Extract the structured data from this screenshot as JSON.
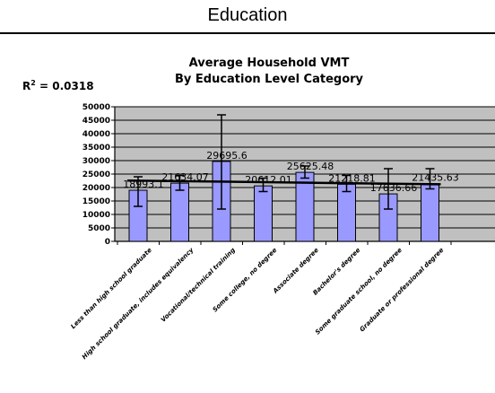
{
  "page": {
    "title": "Education"
  },
  "chart_data": {
    "type": "bar",
    "title": "Average Household VMT",
    "subtitle": "By Education Level Category",
    "r_squared": {
      "label": "R",
      "superscript": "2",
      "value_text": " = 0.0318"
    },
    "categories": [
      "Less than high school graduate",
      "High school graduate, includes equivalency",
      "Vocational/technical training",
      "Some college, no degree",
      "Associate degree",
      "Bachelor's degree",
      "Some graduate school, no degree",
      "Graduate or professional degree"
    ],
    "values": [
      18993.1,
      21634.07,
      29695.6,
      20612.01,
      25625.48,
      21218.81,
      17636.66,
      21435.63
    ],
    "value_labels": [
      "18993.1",
      "21634.07",
      "29695.6",
      "20612.01",
      "25625.48",
      "21218.81",
      "17636.66",
      "21435.63"
    ],
    "error_low": [
      13000,
      19000,
      12000,
      18500,
      23500,
      18500,
      12000,
      19500
    ],
    "error_high": [
      24000,
      24500,
      47000,
      23500,
      28000,
      24500,
      27000,
      27000
    ],
    "trendline": {
      "start": 22600,
      "end": 21200
    },
    "ylim": [
      0,
      50000
    ],
    "yticks": [
      0,
      5000,
      10000,
      15000,
      20000,
      25000,
      30000,
      35000,
      40000,
      45000,
      50000
    ],
    "grid": true,
    "colors": {
      "bar": "#9999FF",
      "plot_bg": "#C0C0C0",
      "error_bar": "#000000",
      "trend": "#000000"
    }
  }
}
